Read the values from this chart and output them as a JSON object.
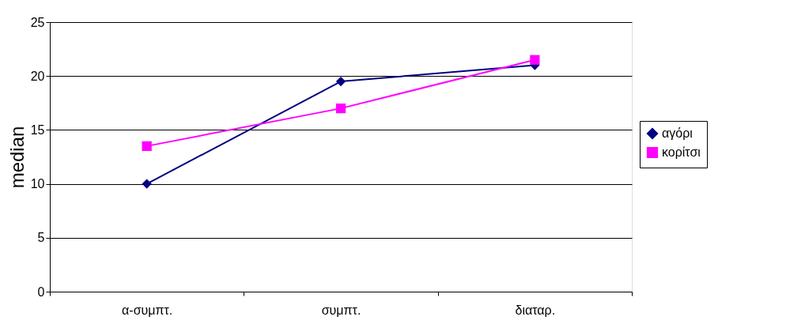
{
  "chart_data": {
    "type": "line",
    "ylabel": "median",
    "categories": [
      "α-συμπτ.",
      "συμπτ.",
      "διαταρ."
    ],
    "series": [
      {
        "name": "αγόρι",
        "color": "#000080",
        "marker": "diamond",
        "values": [
          10,
          19.5,
          21
        ]
      },
      {
        "name": "κορίτσι",
        "color": "#ff00ff",
        "marker": "square",
        "values": [
          13.5,
          17,
          21.5
        ]
      }
    ],
    "ylim": [
      0,
      25
    ],
    "yticks": [
      0,
      5,
      10,
      15,
      20,
      25
    ],
    "grid": "y",
    "legend": "right",
    "line_style": "solid"
  }
}
